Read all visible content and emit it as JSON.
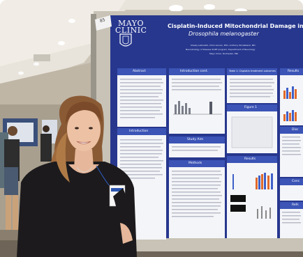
{
  "poster": {
    "logo_line1": "MAYO",
    "logo_line2": "CLINIC",
    "title": "Cisplatin-Induced Mitochondrial Damage in",
    "subtitle": "Drosophila melanogaster",
    "authors": "Shealy Leibowitz, Chris Grover, PhD, Anthony Windebank, MD",
    "affiliation": "Neurobiology of Disease SURF program, Department of Neurology",
    "location": "Mayo Clinic, Rochester, MN",
    "badge_number": "85",
    "sections": {
      "abstract": "Abstract",
      "introduction_cont": "Introduction cont.",
      "table_caption": "Table 1: Cisplatin treatment outcomes",
      "results_top": "Results",
      "introduction": "Introduction",
      "figure1": "Figure 1",
      "study_aim": "Study Aim",
      "methods": "Methods",
      "results": "Results",
      "disc": "Disc",
      "conc": "Conc",
      "refs": "Refs"
    }
  },
  "colors": {
    "poster_blue": "#27378e",
    "panel_white": "#f4f5f8",
    "ceiling": "#ece8e0",
    "carpet": "#8a7f6e"
  }
}
